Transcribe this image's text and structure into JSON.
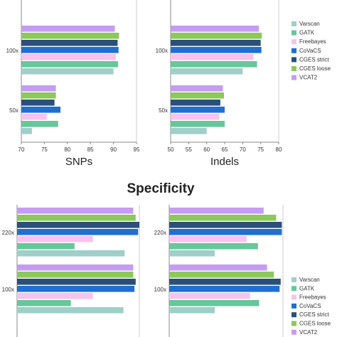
{
  "section_title": "Specificity",
  "legend_items": [
    "Varscan",
    "GATK",
    "Freebayes",
    "CoVaCS",
    "CGES strict",
    "CGES loose",
    "VCAT2"
  ],
  "legend_items_bottom": [
    "Varscan",
    "GATK",
    "Freebayes",
    "CoVaCS",
    "CGES strict",
    "CGES loose",
    "VCAT2"
  ],
  "series_colors": [
    "#9ecfc9",
    "#66c79a",
    "#f7c3ec",
    "#1f6fd1",
    "#2b4f7a",
    "#8cc85a",
    "#c69cf2"
  ],
  "chart_data": [
    {
      "type": "bar",
      "orientation": "horizontal",
      "xlabel": "SNPs",
      "xlim": [
        70,
        95
      ],
      "xticks": [
        "70",
        "75",
        "80",
        "85",
        "90",
        "95"
      ],
      "categories": [
        "100x",
        "50x"
      ],
      "series": [
        {
          "name": "Varscan",
          "values": [
            90.0,
            72.3
          ]
        },
        {
          "name": "GATK",
          "values": [
            91.0,
            78.0
          ]
        },
        {
          "name": "Freebayes",
          "values": [
            90.5,
            75.5
          ]
        },
        {
          "name": "CoVaCS",
          "values": [
            91.1,
            78.5
          ]
        },
        {
          "name": "CGES strict",
          "values": [
            90.9,
            77.2
          ]
        },
        {
          "name": "CGES loose",
          "values": [
            91.2,
            77.5
          ]
        },
        {
          "name": "VCAT2",
          "values": [
            90.3,
            77.5
          ]
        }
      ]
    },
    {
      "type": "bar",
      "orientation": "horizontal",
      "xlabel": "Indels",
      "xlim": [
        50,
        80
      ],
      "xticks": [
        "50",
        "55",
        "60",
        "65",
        "70",
        "75",
        "80"
      ],
      "categories": [
        "100x",
        "50x"
      ],
      "series": [
        {
          "name": "Varscan",
          "values": [
            70.0,
            60.0
          ]
        },
        {
          "name": "GATK",
          "values": [
            74.0,
            65.0
          ]
        },
        {
          "name": "Freebayes",
          "values": [
            73.0,
            63.5
          ]
        },
        {
          "name": "CoVaCS",
          "values": [
            75.2,
            65.0
          ]
        },
        {
          "name": "CGES strict",
          "values": [
            75.0,
            63.8
          ]
        },
        {
          "name": "CGES loose",
          "values": [
            75.3,
            64.8
          ]
        },
        {
          "name": "VCAT2",
          "values": [
            74.5,
            64.5
          ]
        }
      ]
    },
    {
      "type": "bar",
      "orientation": "horizontal",
      "categories": [
        "220x",
        "100x"
      ],
      "series": [
        {
          "name": "Varscan",
          "values": [
            88,
            87
          ]
        },
        {
          "name": "GATK",
          "values": [
            47,
            44
          ]
        },
        {
          "name": "Freebayes",
          "values": [
            62,
            62
          ]
        },
        {
          "name": "CoVaCS",
          "values": [
            99,
            96
          ]
        },
        {
          "name": "CGES strict",
          "values": [
            100,
            97
          ]
        },
        {
          "name": "CGES loose",
          "values": [
            97,
            95
          ]
        },
        {
          "name": "VCAT2",
          "values": [
            95,
            95
          ]
        }
      ]
    },
    {
      "type": "bar",
      "orientation": "horizontal",
      "categories": [
        "220x",
        "100x"
      ],
      "series": [
        {
          "name": "Varscan",
          "values": [
            40,
            40
          ]
        },
        {
          "name": "GATK",
          "values": [
            78,
            79
          ]
        },
        {
          "name": "Freebayes",
          "values": [
            68,
            71
          ]
        },
        {
          "name": "CoVaCS",
          "values": [
            99,
            97
          ]
        },
        {
          "name": "CGES strict",
          "values": [
            99,
            98
          ]
        },
        {
          "name": "CGES loose",
          "values": [
            94,
            92
          ]
        },
        {
          "name": "VCAT2",
          "values": [
            83,
            86
          ]
        }
      ]
    }
  ]
}
